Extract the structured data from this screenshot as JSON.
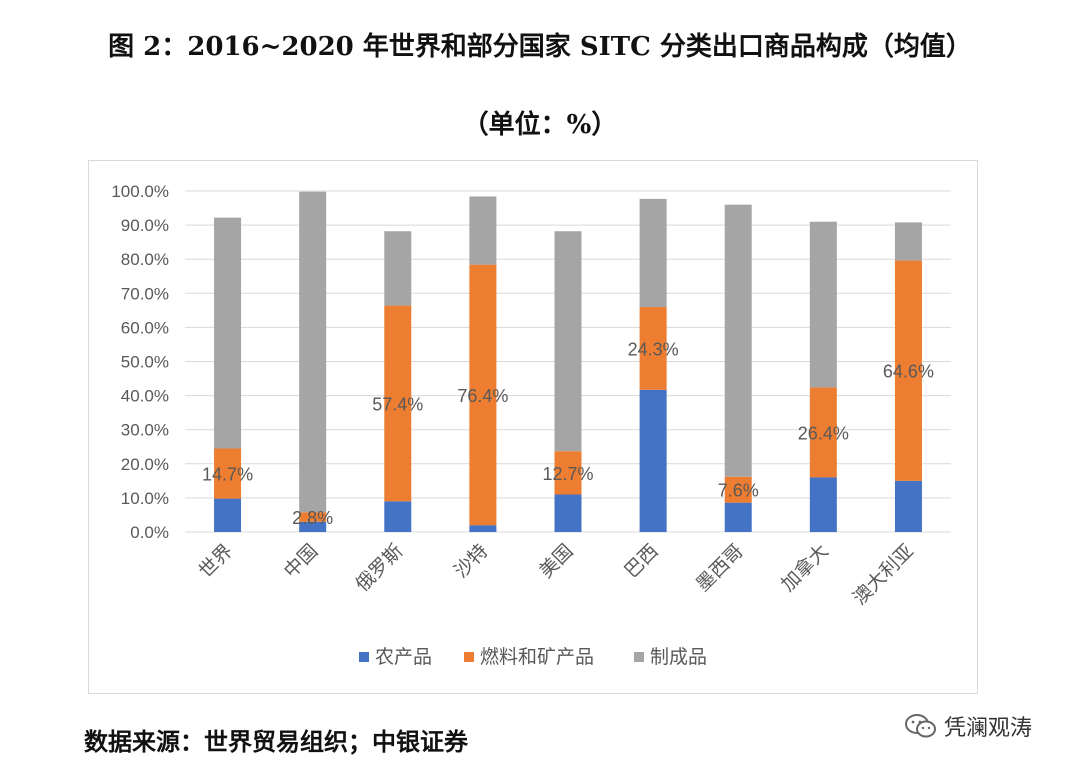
{
  "title": "图 2：2016~2020 年世界和部分国家 SITC 分类出口商品构成（均值）",
  "unit": "（单位：%）",
  "source": "数据来源：世界贸易组织；中银证券",
  "watermark": "凭澜观涛",
  "chart_data": {
    "type": "bar",
    "stacked": true,
    "categories": [
      "世界",
      "中国",
      "俄罗斯",
      "沙特",
      "美国",
      "巴西",
      "墨西哥",
      "加拿大",
      "澳大利亚"
    ],
    "series": [
      {
        "name": "农产品",
        "color": "#4472c4",
        "values": [
          9.8,
          3.0,
          9.0,
          2.0,
          11.0,
          41.7,
          8.6,
          16.0,
          15.0
        ]
      },
      {
        "name": "燃料和矿产品",
        "color": "#ed7d31",
        "values": [
          14.7,
          2.8,
          57.4,
          76.4,
          12.7,
          24.3,
          7.6,
          26.4,
          64.6
        ]
      },
      {
        "name": "制成品",
        "color": "#a5a5a5",
        "values": [
          67.7,
          94.0,
          21.8,
          20.0,
          64.5,
          31.7,
          79.8,
          48.6,
          11.2
        ]
      }
    ],
    "data_labels": [
      "14.7%",
      "2.8%",
      "57.4%",
      "76.4%",
      "12.7%",
      "24.3%",
      "7.6%",
      "26.4%",
      "64.6%"
    ],
    "ylim": [
      0,
      100
    ],
    "yticks": [
      "0.0%",
      "10.0%",
      "20.0%",
      "30.0%",
      "40.0%",
      "50.0%",
      "60.0%",
      "70.0%",
      "80.0%",
      "90.0%",
      "100.0%"
    ],
    "grid": true,
    "legend_position": "bottom"
  }
}
